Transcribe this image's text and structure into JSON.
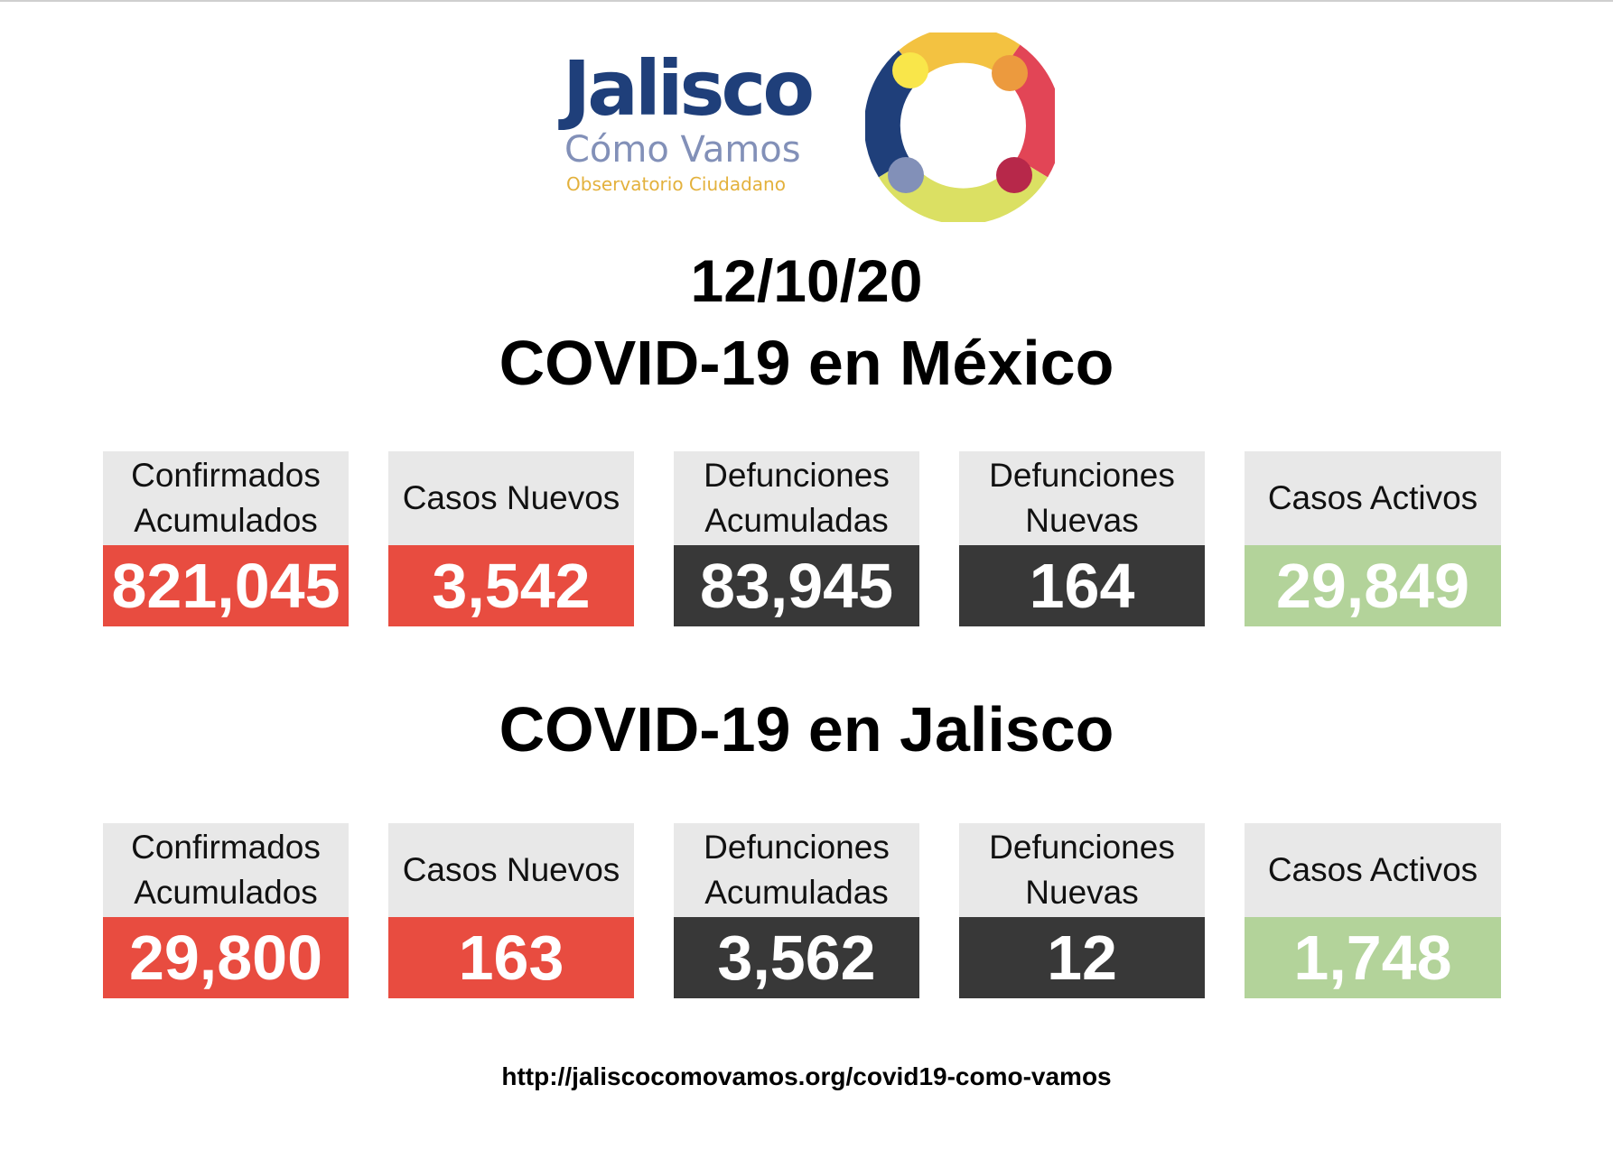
{
  "logo": {
    "word": "Jalisco",
    "subtitle": "Cómo Vamos",
    "tagline": "Observatorio Ciudadano",
    "colors": [
      "#1f3f7a",
      "#e3b13c",
      "#f3c241",
      "#ec9a3e",
      "#e24556",
      "#dbe063",
      "#8290b8"
    ]
  },
  "date": "12/10/20",
  "mexico": {
    "title": "COVID-19 en México",
    "stats": [
      {
        "label": "Confirmados\nAcumulados",
        "value": "821,045"
      },
      {
        "label": "Casos Nuevos",
        "value": "3,542"
      },
      {
        "label": "Defunciones\nAcumuladas",
        "value": "83,945"
      },
      {
        "label": "Defunciones\nNuevas",
        "value": "164"
      },
      {
        "label": "Casos Activos",
        "value": "29,849"
      }
    ]
  },
  "jalisco": {
    "title": "COVID-19 en Jalisco",
    "stats": [
      {
        "label": "Confirmados\nAcumulados",
        "value": "29,800"
      },
      {
        "label": "Casos Nuevos",
        "value": "163"
      },
      {
        "label": "Defunciones\nAcumuladas",
        "value": "3,562"
      },
      {
        "label": "Defunciones\nNuevas",
        "value": "12"
      },
      {
        "label": "Casos Activos",
        "value": "1,748"
      }
    ]
  },
  "colors": {
    "cases": "#e84c40",
    "deaths": "#383838",
    "active": "#b3d39a",
    "label_bg": "#e8e8e8"
  },
  "url": "http://jaliscocomovamos.org/covid19-como-vamos"
}
